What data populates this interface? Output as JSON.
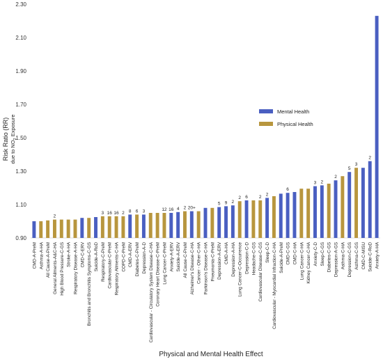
{
  "chart_data": {
    "type": "bar",
    "title": "",
    "xlabel": "Physical and Mental Health Effect",
    "ylabel": "Risk Ratio (RR)",
    "ylabel_sub": "due to NO",
    "ylabel_sub2": "2",
    "ylabel_sub3": " Exposure",
    "ylim": [
      0.9,
      2.3
    ],
    "yticks": [
      "0.90",
      "1.10",
      "1.30",
      "1.50",
      "1.70",
      "1.90",
      "2.10",
      "2.30"
    ],
    "grid": false,
    "legend_position": "right",
    "series": [
      {
        "name": "Mental Health",
        "color": "#4a5fc1"
      },
      {
        "name": "Physical Health",
        "color": "#b8963e"
      }
    ],
    "bars": [
      {
        "label": "CMD-A-PreM",
        "value": 1.0,
        "series": 0,
        "note": ""
      },
      {
        "label": "Asthma-A-HA",
        "value": 1.0,
        "series": 1,
        "note": ""
      },
      {
        "label": "All Cause-A-PreM",
        "value": 1.005,
        "series": 1,
        "note": ""
      },
      {
        "label": "General Ailments-A&C-HA",
        "value": 1.01,
        "series": 1,
        "note": "2"
      },
      {
        "label": "High Blood Pressure-C-GS",
        "value": 1.01,
        "series": 1,
        "note": ""
      },
      {
        "label": "Stroke-A-HA",
        "value": 1.01,
        "series": 1,
        "note": ""
      },
      {
        "label": "Respiratory Disease-A-HA",
        "value": 1.01,
        "series": 1,
        "note": ""
      },
      {
        "label": "CMD-C-ERV",
        "value": 1.02,
        "series": 0,
        "note": ""
      },
      {
        "label": "Bronchitis and Bronchitis Symptoms-C-GS",
        "value": 1.02,
        "series": 1,
        "note": ""
      },
      {
        "label": "Suicide-A-RoD",
        "value": 1.025,
        "series": 0,
        "note": ""
      },
      {
        "label": "Respiratory-C-PreM",
        "value": 1.03,
        "series": 1,
        "note": "3"
      },
      {
        "label": "Cardiovascular-C-PreM",
        "value": 1.03,
        "series": 1,
        "note": "16"
      },
      {
        "label": "Respiratory Ailments-C-HA",
        "value": 1.03,
        "series": 1,
        "note": "16"
      },
      {
        "label": "COPD-C-PreM",
        "value": 1.03,
        "series": 1,
        "note": "2"
      },
      {
        "label": "CMD-A-ERV",
        "value": 1.04,
        "series": 0,
        "note": "8"
      },
      {
        "label": "Diabetes-C-PreM",
        "value": 1.04,
        "series": 1,
        "note": "6"
      },
      {
        "label": "Depression-A-D",
        "value": 1.04,
        "series": 0,
        "note": "3"
      },
      {
        "label": "Cardiovascular - Circulatory System Disease-C-HA",
        "value": 1.05,
        "series": 1,
        "note": ""
      },
      {
        "label": "Coronary Heart Disease-C-PreM",
        "value": 1.05,
        "series": 1,
        "note": ""
      },
      {
        "label": "Lung Cancer-C-PreM",
        "value": 1.05,
        "series": 1,
        "note": "12"
      },
      {
        "label": "Anxiety-A-ERV",
        "value": 1.05,
        "series": 0,
        "note": "16"
      },
      {
        "label": "Suicide-A-ERV",
        "value": 1.055,
        "series": 0,
        "note": "4"
      },
      {
        "label": "All Cause-C-PreM",
        "value": 1.06,
        "series": 1,
        "note": "2"
      },
      {
        "label": "Alzheimer's Disease-C-HA",
        "value": 1.06,
        "series": 0,
        "note": "20+"
      },
      {
        "label": "Cancer - Other-C-HA",
        "value": 1.06,
        "series": 1,
        "note": ""
      },
      {
        "label": "Parkinson's Disease-C-HA",
        "value": 1.08,
        "series": 0,
        "note": ""
      },
      {
        "label": "Pneumonia-C-PreM",
        "value": 1.08,
        "series": 1,
        "note": ""
      },
      {
        "label": "Depression-A-ERV",
        "value": 1.085,
        "series": 0,
        "note": "5"
      },
      {
        "label": "CMD-A-HA",
        "value": 1.09,
        "series": 0,
        "note": "9"
      },
      {
        "label": "Depression-A-HA",
        "value": 1.095,
        "series": 0,
        "note": "2"
      },
      {
        "label": "Lung Cancer-C-Occurrence",
        "value": 1.12,
        "series": 1,
        "note": "2"
      },
      {
        "label": "Depression-C-D",
        "value": 1.125,
        "series": 0,
        "note": "6"
      },
      {
        "label": "Headache-C-GS",
        "value": 1.125,
        "series": 1,
        "note": ""
      },
      {
        "label": "Cardiovascular Disease-C-GS",
        "value": 1.125,
        "series": 1,
        "note": "2"
      },
      {
        "label": "Sleep-C-D",
        "value": 1.14,
        "series": 0,
        "note": "2"
      },
      {
        "label": "Cardiovascular - Myocardial Infraction-C-HA",
        "value": 1.15,
        "series": 1,
        "note": ""
      },
      {
        "label": "Suicide-A-PreM",
        "value": 1.165,
        "series": 0,
        "note": ""
      },
      {
        "label": "CMD-C-GS",
        "value": 1.17,
        "series": 0,
        "note": "6"
      },
      {
        "label": "CMD-C-HA",
        "value": 1.175,
        "series": 0,
        "note": ""
      },
      {
        "label": "Lung Cancer-C-HA",
        "value": 1.195,
        "series": 1,
        "note": ""
      },
      {
        "label": "Kidney Cancer-C-HA",
        "value": 1.195,
        "series": 1,
        "note": ""
      },
      {
        "label": "Anxiety-C-D",
        "value": 1.21,
        "series": 0,
        "note": "3"
      },
      {
        "label": "Sleep-C-GS",
        "value": 1.215,
        "series": 0,
        "note": "2"
      },
      {
        "label": "Diabetes-C-GS",
        "value": 1.225,
        "series": 1,
        "note": ""
      },
      {
        "label": "Depression-A-GS",
        "value": 1.245,
        "series": 0,
        "note": "2"
      },
      {
        "label": "Asthma-C-HA",
        "value": 1.27,
        "series": 1,
        "note": ""
      },
      {
        "label": "Depression-C-GS",
        "value": 1.295,
        "series": 0,
        "note": "5"
      },
      {
        "label": "Asthma-C-GS",
        "value": 1.32,
        "series": 1,
        "note": "3"
      },
      {
        "label": "CMD-C-MISU",
        "value": 1.32,
        "series": 0,
        "note": ""
      },
      {
        "label": "Suicide-C-RoD",
        "value": 1.36,
        "series": 0,
        "note": "2"
      },
      {
        "label": "Anxiety-A-HA",
        "value": 2.23,
        "series": 0,
        "note": ""
      }
    ]
  }
}
